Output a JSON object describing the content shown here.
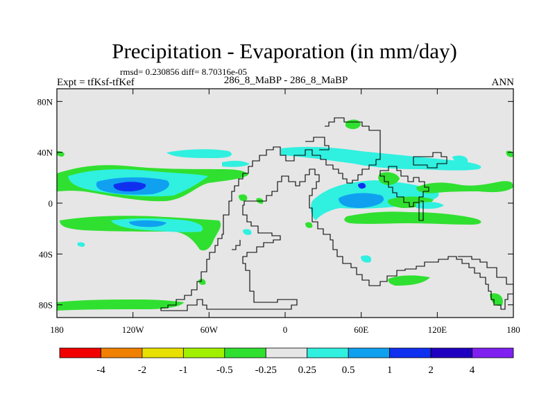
{
  "chart_data": {
    "type": "heatmap",
    "title": "Precipitation - Evaporation (in mm/day)",
    "stats": "rmsd= 0.230856 diff= 8.70316e-05",
    "subtitle": "286_8_MaBP - 286_8_MaBP",
    "left_label": "Expt = tfKsf-tfKef",
    "right_label": "ANN",
    "x_ticks": [
      {
        "value": -180,
        "label": "180"
      },
      {
        "value": -120,
        "label": "120W"
      },
      {
        "value": -60,
        "label": "60W"
      },
      {
        "value": 0,
        "label": "0"
      },
      {
        "value": 60,
        "label": "60E"
      },
      {
        "value": 120,
        "label": "120E"
      },
      {
        "value": 180,
        "label": "180"
      }
    ],
    "y_ticks": [
      {
        "value": 80,
        "label": "80N"
      },
      {
        "value": 40,
        "label": "40N"
      },
      {
        "value": 0,
        "label": "0"
      },
      {
        "value": -40,
        "label": "40S"
      },
      {
        "value": -80,
        "label": "80S"
      }
    ],
    "xlim": [
      -180,
      180
    ],
    "ylim": [
      -90,
      90
    ],
    "colorbar": {
      "colors": [
        "#f00000",
        "#f08000",
        "#e8e000",
        "#a0f000",
        "#30e030",
        "#e6e6e6",
        "#30f0e0",
        "#10a0f0",
        "#1030f0",
        "#2000c0",
        "#8020f0"
      ],
      "labels": [
        "-4",
        "-2",
        "-1",
        "-0.5",
        "-0.25",
        "0.25",
        "0.5",
        "1",
        "2",
        "4"
      ]
    },
    "background_color": "#e6e6e6",
    "bands": [
      {
        "name": "north-pacific-green-band",
        "lon": [
          -180,
          -30
        ],
        "lat": [
          6,
          30
        ],
        "color": "#30e030"
      },
      {
        "name": "north-pacific-cyan-band",
        "lon": [
          -170,
          -60
        ],
        "lat": [
          8,
          26
        ],
        "color": "#30f0e0"
      },
      {
        "name": "north-pacific-blue-band",
        "lon": [
          -150,
          -100
        ],
        "lat": [
          10,
          22
        ],
        "color": "#10a0f0"
      },
      {
        "name": "north-pacific-darkblue-core",
        "lon": [
          -140,
          -112
        ],
        "lat": [
          11,
          17
        ],
        "color": "#1030f0"
      },
      {
        "name": "south-pacific-green-band",
        "lon": [
          -180,
          -60
        ],
        "lat": [
          -36,
          -10
        ],
        "color": "#30e030"
      },
      {
        "name": "south-pacific-cyan-band",
        "lon": [
          -150,
          -70
        ],
        "lat": [
          -20,
          -10
        ],
        "color": "#30f0e0"
      },
      {
        "name": "south-pacific-blue-band",
        "lon": [
          -120,
          -90
        ],
        "lat": [
          -16,
          -12
        ],
        "color": "#10a0f0"
      },
      {
        "name": "indian-ocean-cyan-band",
        "lon": [
          15,
          120
        ],
        "lat": [
          -10,
          10
        ],
        "color": "#30f0e0"
      },
      {
        "name": "indian-ocean-blue-patch",
        "lon": [
          40,
          80
        ],
        "lat": [
          -5,
          5
        ],
        "color": "#10a0f0"
      },
      {
        "name": "tethys-darkblue-spot",
        "lon": [
          60,
          62
        ],
        "lat": [
          13,
          16
        ],
        "color": "#1030f0"
      },
      {
        "name": "south-indian-green-band",
        "lon": [
          60,
          160
        ],
        "lat": [
          -18,
          -10
        ],
        "color": "#30e030"
      },
      {
        "name": "northeast-green-band",
        "lon": [
          140,
          180
        ],
        "lat": [
          10,
          20
        ],
        "color": "#30e030"
      },
      {
        "name": "north-atlantic-cyan-band",
        "lon": [
          -50,
          40
        ],
        "lat": [
          30,
          45
        ],
        "color": "#30f0e0"
      }
    ],
    "continent_outline": "Pangaea (land-sea boundary, black outline)"
  }
}
